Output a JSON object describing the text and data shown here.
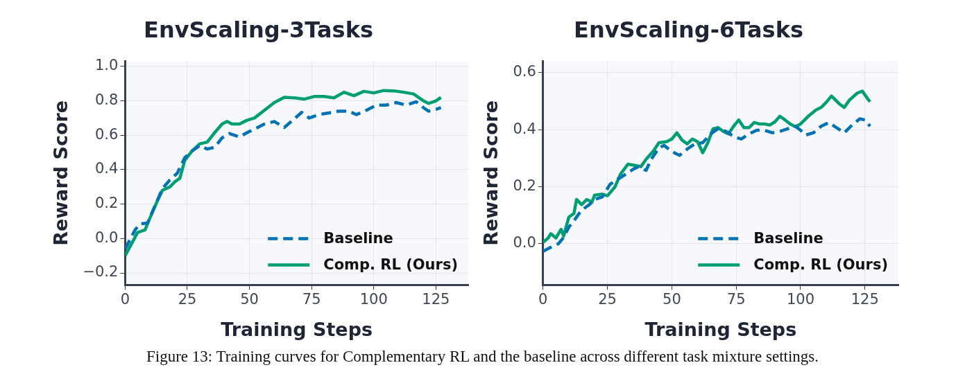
{
  "chart_data": [
    {
      "type": "line",
      "title": "EnvScaling-3Tasks",
      "xlabel": "Training Steps",
      "ylabel": "Reward Score",
      "xlim": [
        0,
        138
      ],
      "xticks": [
        0,
        25,
        50,
        75,
        100,
        125
      ],
      "ylim": [
        -0.27,
        1.03
      ],
      "yticks": [
        {
          "value": -0.2,
          "label": "−0.2"
        },
        {
          "value": 0,
          "label": "0.0"
        },
        {
          "value": 0.2,
          "label": "0.2"
        },
        {
          "value": 0.4,
          "label": "0.4"
        },
        {
          "value": 0.6,
          "label": "0.6"
        },
        {
          "value": 0.8,
          "label": "0.8"
        },
        {
          "value": 1,
          "label": "1.0"
        }
      ],
      "grid": true,
      "legend": "bottom right",
      "marker": "none",
      "series": [
        {
          "name": "Baseline",
          "color": "#0173b2",
          "line_style": "dashed",
          "x": [
            0,
            4,
            6,
            9,
            12,
            15,
            18,
            21,
            24,
            27,
            30,
            33,
            36,
            39,
            42,
            46,
            49,
            52,
            56,
            60,
            64,
            68,
            71,
            74,
            78,
            82,
            86,
            90,
            93,
            97,
            101,
            105,
            109,
            113,
            117,
            120,
            122,
            125,
            127
          ],
          "values": [
            -0.06,
            0.05,
            0.085,
            0.09,
            0.19,
            0.29,
            0.34,
            0.38,
            0.47,
            0.51,
            0.54,
            0.52,
            0.53,
            0.585,
            0.61,
            0.59,
            0.615,
            0.635,
            0.665,
            0.68,
            0.645,
            0.695,
            0.733,
            0.7,
            0.72,
            0.73,
            0.74,
            0.74,
            0.72,
            0.745,
            0.775,
            0.775,
            0.79,
            0.775,
            0.795,
            0.76,
            0.74,
            0.75,
            0.76
          ]
        },
        {
          "name": "Comp. RL (Ours)",
          "color": "#029e73",
          "line_style": "solid",
          "x": [
            0,
            5,
            8,
            10,
            13,
            15,
            18,
            20,
            22,
            24,
            27,
            30,
            33,
            36,
            39,
            41,
            43,
            46,
            49,
            52,
            56,
            60,
            64,
            68,
            72,
            76,
            80,
            84,
            88,
            92,
            96,
            100,
            104,
            108,
            112,
            116,
            120,
            122,
            125,
            127
          ],
          "values": [
            -0.1,
            0.035,
            0.05,
            0.12,
            0.22,
            0.28,
            0.3,
            0.33,
            0.35,
            0.455,
            0.51,
            0.55,
            0.56,
            0.615,
            0.665,
            0.68,
            0.665,
            0.665,
            0.687,
            0.7,
            0.745,
            0.79,
            0.82,
            0.817,
            0.81,
            0.825,
            0.825,
            0.817,
            0.85,
            0.83,
            0.855,
            0.846,
            0.86,
            0.858,
            0.85,
            0.84,
            0.8,
            0.785,
            0.8,
            0.82
          ]
        }
      ],
      "annotations": [
        "Figure 13: Training curves for Complementary RL and the baseline across different task mixture settings."
      ]
    },
    {
      "type": "line",
      "title": "EnvScaling-6Tasks",
      "xlabel": "Training Steps",
      "ylabel": "Reward Score",
      "xlim": [
        0,
        138
      ],
      "xticks": [
        0,
        25,
        50,
        75,
        100,
        125
      ],
      "ylim": [
        -0.145,
        0.64
      ],
      "yticks": [
        {
          "value": 0,
          "label": "0.0"
        },
        {
          "value": 0.2,
          "label": "0.2"
        },
        {
          "value": 0.4,
          "label": "0.4"
        },
        {
          "value": 0.6,
          "label": "0.6"
        }
      ],
      "grid": true,
      "legend": "bottom right",
      "marker": "none",
      "series": [
        {
          "name": "Baseline",
          "color": "#0173b2",
          "line_style": "dashed",
          "x": [
            0,
            3,
            6,
            8,
            10,
            12,
            14,
            16,
            18,
            20,
            23,
            26,
            29,
            32,
            35,
            37,
            40,
            42,
            45,
            47,
            50,
            53,
            56,
            59,
            62,
            65,
            68,
            71,
            74,
            77,
            80,
            83,
            86,
            89,
            92,
            95,
            98,
            100,
            102,
            105,
            108,
            111,
            114,
            117,
            120,
            123,
            125,
            127
          ],
          "values": [
            -0.027,
            -0.013,
            0,
            0.022,
            0.058,
            0.08,
            0.106,
            0.124,
            0.137,
            0.155,
            0.164,
            0.208,
            0.226,
            0.243,
            0.261,
            0.27,
            0.257,
            0.296,
            0.336,
            0.345,
            0.323,
            0.31,
            0.332,
            0.35,
            0.354,
            0.385,
            0.403,
            0.394,
            0.376,
            0.367,
            0.385,
            0.398,
            0.398,
            0.389,
            0.394,
            0.403,
            0.412,
            0.398,
            0.381,
            0.389,
            0.412,
            0.425,
            0.407,
            0.389,
            0.416,
            0.438,
            0.434,
            0.412
          ]
        },
        {
          "name": "Comp. RL (Ours)",
          "color": "#029e73",
          "line_style": "solid",
          "x": [
            0,
            2,
            3,
            5,
            7,
            8,
            10,
            12,
            13,
            15,
            17,
            19,
            20,
            23,
            25,
            28,
            30,
            33,
            36,
            38,
            40,
            43,
            45,
            48,
            50,
            52,
            54,
            56,
            58,
            60,
            62,
            64,
            66,
            68,
            70,
            72,
            74,
            76,
            78,
            80,
            82,
            84,
            86,
            88,
            90,
            92,
            94,
            96,
            98,
            100,
            103,
            106,
            108,
            110,
            112,
            115,
            117,
            119,
            122,
            124,
            126,
            127
          ],
          "values": [
            0.005,
            0.02,
            0.035,
            0.02,
            0.05,
            0.027,
            0.093,
            0.106,
            0.155,
            0.137,
            0.155,
            0.146,
            0.17,
            0.174,
            0.168,
            0.2,
            0.243,
            0.279,
            0.274,
            0.27,
            0.296,
            0.327,
            0.354,
            0.358,
            0.367,
            0.389,
            0.363,
            0.35,
            0.367,
            0.358,
            0.319,
            0.354,
            0.403,
            0.407,
            0.394,
            0.385,
            0.412,
            0.434,
            0.407,
            0.407,
            0.425,
            0.42,
            0.42,
            0.416,
            0.427,
            0.447,
            0.434,
            0.42,
            0.41,
            0.42,
            0.447,
            0.469,
            0.478,
            0.496,
            0.518,
            0.491,
            0.478,
            0.504,
            0.528,
            0.535,
            0.509,
            0.498
          ]
        }
      ]
    }
  ]
}
